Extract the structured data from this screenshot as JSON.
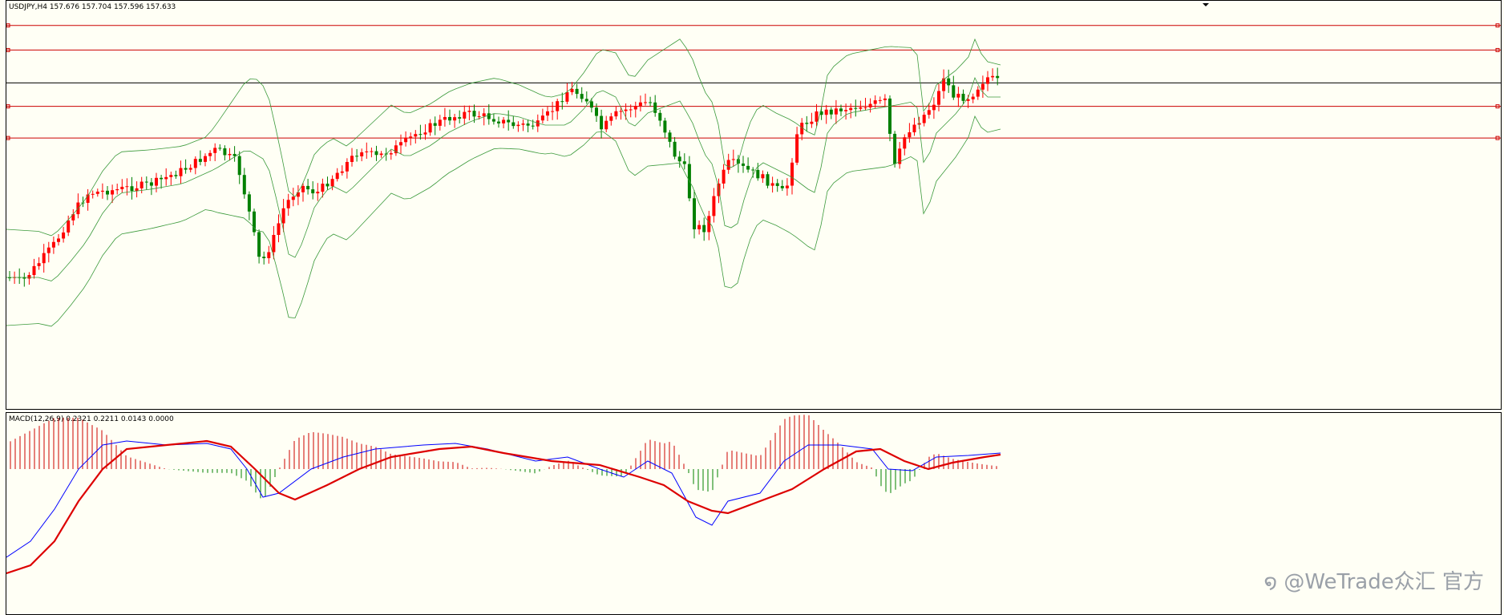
{
  "price_header": "USDJPY,H4  157.676 157.704 157.596 157.633",
  "macd_header": "MACD(12,26,9) 0.2321 0.2211 0.0143 0.0000",
  "watermark": "໑ @WeTrade众汇 官方",
  "colors": {
    "bull": "#ff0000",
    "bear": "#008000",
    "bands": "#3c9a3c",
    "level": "#cc0000",
    "macd_line": "#0000ff",
    "signal_line": "#dd0000",
    "hist_pos": "#cc0000",
    "hist_neg": "#008000",
    "bg": "#fffff5"
  },
  "chart_data": [
    {
      "type": "candlestick",
      "symbol": "USDJPY",
      "timeframe": "H4",
      "ohlc_last": {
        "open": 157.676,
        "high": 157.704,
        "low": 157.596,
        "close": 157.633
      },
      "ylim": [
        153.0,
        158.8
      ],
      "horizontal_lines": [
        {
          "price": 158.45,
          "color": "red"
        },
        {
          "price": 158.1,
          "color": "red"
        },
        {
          "price": 157.633,
          "color": "black"
        },
        {
          "price": 157.3,
          "color": "red"
        },
        {
          "price": 156.85,
          "color": "red"
        }
      ],
      "indicators": [
        "Bollinger Bands"
      ]
    },
    {
      "type": "macd",
      "params": "12,26,9",
      "values": {
        "macd": 0.2321,
        "signal": 0.2211,
        "histogram": 0.0143,
        "extra": 0.0
      }
    }
  ]
}
